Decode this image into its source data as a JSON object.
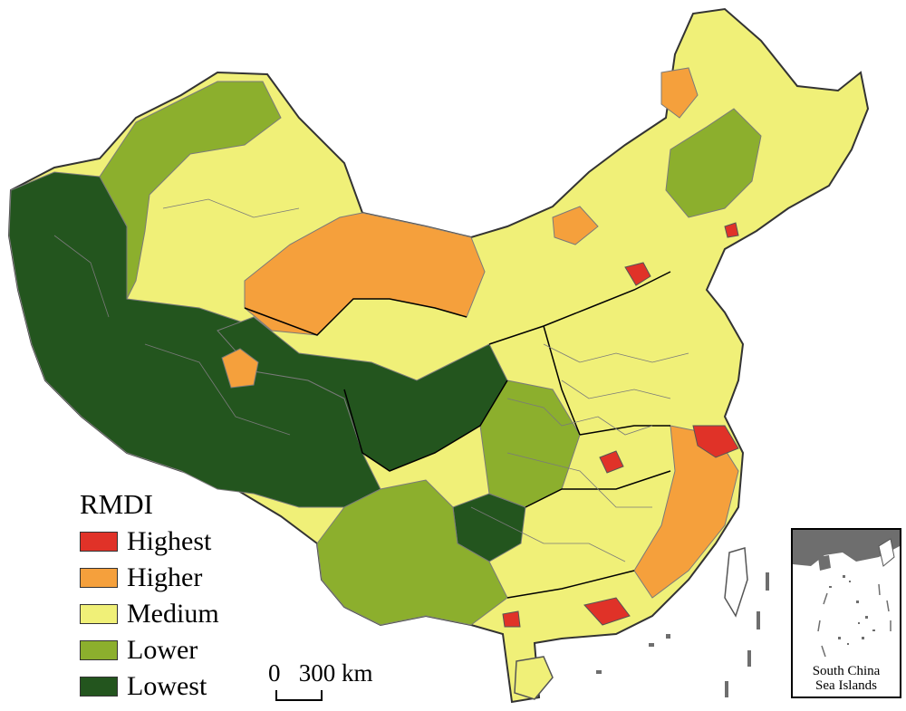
{
  "legend": {
    "title": "RMDI",
    "items": [
      {
        "label": "Highest",
        "color": "#e03228"
      },
      {
        "label": "Higher",
        "color": "#f5a03c"
      },
      {
        "label": "Medium",
        "color": "#f0f078"
      },
      {
        "label": "Lower",
        "color": "#8caf2d"
      },
      {
        "label": "Lowest",
        "color": "#23551e"
      }
    ]
  },
  "scale_bar": {
    "label": "0   300 km"
  },
  "inset": {
    "label_line1": "South China",
    "label_line2": "Sea Islands"
  },
  "colors": {
    "boundary_county": "#7a7a7a",
    "boundary_province": "#000000",
    "island_gray": "#6e6e6e"
  }
}
